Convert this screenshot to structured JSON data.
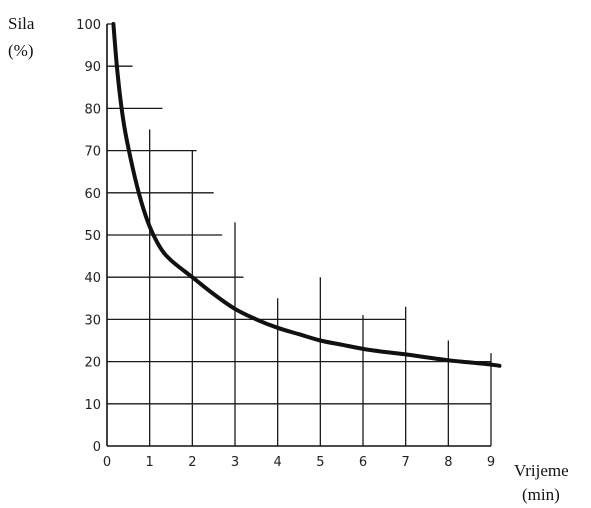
{
  "chart_data": {
    "type": "line",
    "xlabel": [
      "Vrijeme",
      "(min)"
    ],
    "ylabel": [
      "Sila",
      "(%)"
    ],
    "xlim": [
      0,
      9
    ],
    "ylim": [
      0,
      100
    ],
    "x_ticks": [
      "0",
      "1",
      "2",
      "3",
      "4",
      "5",
      "6",
      "7",
      "8",
      "9"
    ],
    "y_ticks": [
      "0",
      "10",
      "20",
      "30",
      "40",
      "50",
      "60",
      "70",
      "80",
      "90",
      "100"
    ],
    "grid": true,
    "series": [
      {
        "x": [
          0.15,
          0.25,
          0.4,
          0.6,
          0.8,
          1.0,
          1.25,
          1.5,
          2.0,
          2.5,
          3.0,
          3.5,
          4.0,
          4.5,
          5.0,
          5.5,
          6.0,
          6.5,
          7.0,
          7.5,
          8.0,
          8.5,
          9.0,
          9.2
        ],
        "y": [
          100,
          88,
          76,
          66,
          58,
          52,
          47,
          44,
          40,
          36,
          32.5,
          30,
          28,
          26.5,
          25,
          24,
          23,
          22.3,
          21.7,
          21,
          20.3,
          19.8,
          19.3,
          19
        ]
      }
    ]
  }
}
